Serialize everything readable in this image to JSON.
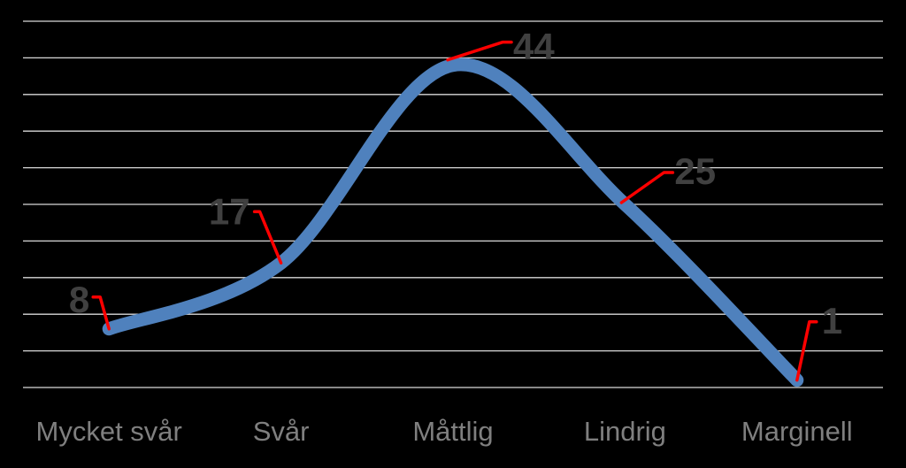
{
  "chart_data": {
    "type": "line",
    "title": "",
    "xlabel": "",
    "ylabel": "",
    "categories": [
      "Mycket svår",
      "Svår",
      "Måttlig",
      "Lindrig",
      "Marginell"
    ],
    "series": [
      {
        "values": [
          8,
          17,
          44,
          25,
          1
        ]
      }
    ],
    "data_labels": [
      "8",
      "17",
      "44",
      "25",
      "1"
    ],
    "ylim": [
      0,
      50
    ],
    "grid": true,
    "legend": "none",
    "smooth": true
  },
  "colors": {
    "background": "#000000",
    "line": "#4f81bd",
    "grid": "#d9d9d9",
    "leader_lines": "#ff0000",
    "data_label_text": "#404040",
    "tick_label_text": "#7f7f7f"
  }
}
